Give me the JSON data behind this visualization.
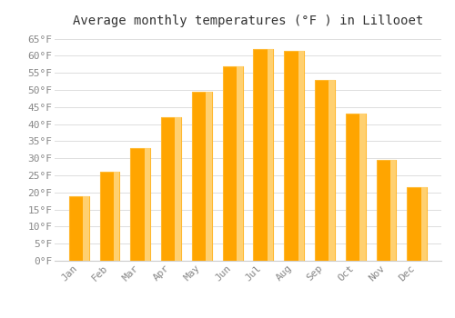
{
  "title": "Average monthly temperatures (°F ) in Lillooet",
  "months": [
    "Jan",
    "Feb",
    "Mar",
    "Apr",
    "May",
    "Jun",
    "Jul",
    "Aug",
    "Sep",
    "Oct",
    "Nov",
    "Dec"
  ],
  "values": [
    19,
    26,
    33,
    42,
    49.5,
    57,
    62,
    61.5,
    53,
    43,
    29.5,
    21.5
  ],
  "bar_color": "#FFA500",
  "bar_edge_color": "#FFB830",
  "ylim": [
    0,
    67
  ],
  "yticks": [
    0,
    5,
    10,
    15,
    20,
    25,
    30,
    35,
    40,
    45,
    50,
    55,
    60,
    65
  ],
  "ytick_labels": [
    "0°F",
    "5°F",
    "10°F",
    "15°F",
    "20°F",
    "25°F",
    "30°F",
    "35°F",
    "40°F",
    "45°F",
    "50°F",
    "55°F",
    "60°F",
    "65°F"
  ],
  "bg_color": "#FFFFFF",
  "plot_bg_color": "#FFFFFF",
  "grid_color": "#DDDDDD",
  "title_fontsize": 10,
  "tick_fontsize": 8,
  "tick_color": "#888888",
  "title_color": "#333333",
  "font_family": "monospace",
  "bar_width": 0.65
}
